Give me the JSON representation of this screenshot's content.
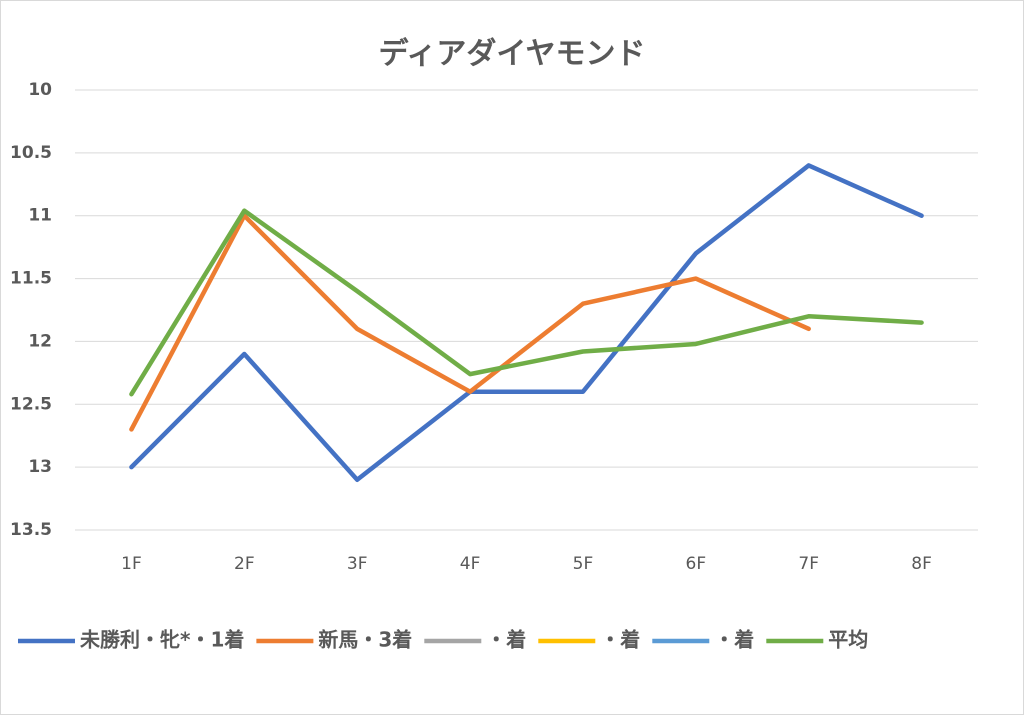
{
  "chart_data": {
    "type": "line",
    "title": "ディアダイヤモンド",
    "categories": [
      "1F",
      "2F",
      "3F",
      "4F",
      "5F",
      "6F",
      "7F",
      "8F"
    ],
    "series": [
      {
        "name": "未勝利・牝*・1着",
        "color": "#4472c4",
        "values": [
          13,
          12.1,
          13.1,
          12.4,
          12.4,
          11.3,
          10.6,
          11.0
        ]
      },
      {
        "name": "新馬・3着",
        "color": "#ed7d31",
        "values": [
          12.7,
          11.0,
          11.9,
          12.4,
          11.7,
          11.5,
          11.9,
          null
        ]
      },
      {
        "name": "・着",
        "color": "#a5a5a5",
        "values": [
          null,
          null,
          null,
          null,
          null,
          null,
          null,
          null
        ]
      },
      {
        "name": "・着",
        "color": "#ffc000",
        "values": [
          null,
          null,
          null,
          null,
          null,
          null,
          null,
          null
        ]
      },
      {
        "name": "・着",
        "color": "#5b9bd5",
        "values": [
          null,
          null,
          null,
          null,
          null,
          null,
          null,
          null
        ]
      },
      {
        "name": "平均",
        "color": "#70ad47",
        "values": [
          12.42,
          10.96,
          11.6,
          12.26,
          12.08,
          12.02,
          11.8,
          11.85
        ]
      }
    ],
    "ylim": [
      10,
      13.5
    ],
    "yticks": [
      10,
      10.5,
      11,
      11.5,
      12,
      12.5,
      13,
      13.5
    ],
    "y_reversed": true,
    "grid": true,
    "legend": "bottom"
  }
}
